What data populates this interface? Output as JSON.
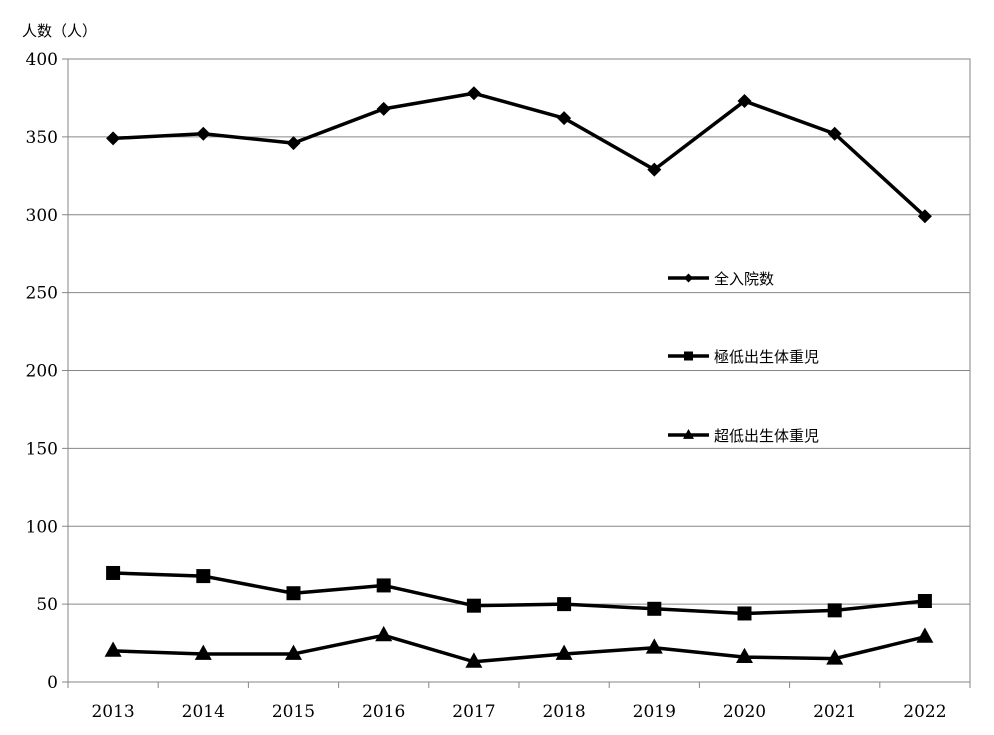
{
  "chart_data": {
    "type": "line",
    "ylabel": "人数（人）",
    "xlabel": "",
    "categories": [
      "2013",
      "2014",
      "2015",
      "2016",
      "2017",
      "2018",
      "2019",
      "2020",
      "2021",
      "2022"
    ],
    "ylim": [
      0,
      400
    ],
    "yticks": [
      "0",
      "50",
      "100",
      "150",
      "200",
      "250",
      "300",
      "350",
      "400"
    ],
    "grid": "horizontal",
    "legend_position": "inside-right",
    "series": [
      {
        "name": "全入院数",
        "marker": "diamond",
        "color": "#000000",
        "values": [
          349,
          352,
          346,
          368,
          378,
          362,
          329,
          373,
          352,
          299
        ]
      },
      {
        "name": "極低出生体重児",
        "marker": "square",
        "color": "#000000",
        "values": [
          70,
          68,
          57,
          62,
          49,
          50,
          47,
          44,
          46,
          52
        ]
      },
      {
        "name": "超低出生体重児",
        "marker": "triangle",
        "color": "#000000",
        "values": [
          20,
          18,
          18,
          30,
          13,
          18,
          22,
          16,
          15,
          29
        ]
      }
    ]
  }
}
